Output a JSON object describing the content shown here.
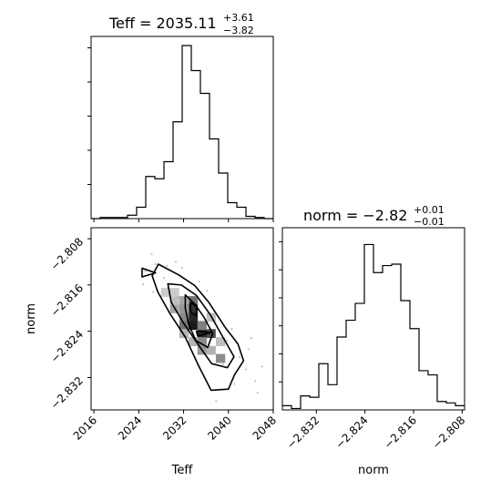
{
  "chart_data": [
    {
      "type": "histogram",
      "panel": "Teff marginal",
      "title": {
        "prefix": "Teff = ",
        "value": "2035.11",
        "upper": "+3.61",
        "lower": "−3.82"
      },
      "xlim": [
        2015.5,
        2048
      ],
      "bin_edges": [
        2015.5,
        2017.125,
        2018.75,
        2020.375,
        2022.0,
        2023.625,
        2025.25,
        2026.875,
        2028.5,
        2030.125,
        2031.75,
        2033.375,
        2035.0,
        2036.625,
        2038.25,
        2039.875,
        2041.5,
        2043.125,
        2044.75,
        2046.375,
        2048.0
      ],
      "counts": [
        0,
        1,
        1,
        1,
        3,
        10,
        37,
        35,
        50,
        85,
        152,
        130,
        110,
        70,
        40,
        14,
        10,
        2,
        1,
        0
      ],
      "ylim": [
        0,
        160
      ],
      "tick_positions": [
        2016,
        2024,
        2032,
        2040,
        2048
      ]
    },
    {
      "type": "histogram",
      "panel": "norm marginal",
      "title": {
        "prefix": "norm = ",
        "value": "−2.82",
        "upper": "+0.01",
        "lower": "−0.01"
      },
      "xlim": [
        -2.8376,
        -2.8076
      ],
      "bin_edges": [
        -2.8376,
        -2.8361,
        -2.8346,
        -2.8331,
        -2.8316,
        -2.8301,
        -2.8286,
        -2.8271,
        -2.8256,
        -2.8241,
        -2.8226,
        -2.8211,
        -2.8196,
        -2.8181,
        -2.8166,
        -2.8151,
        -2.8136,
        -2.8121,
        -2.8106,
        -2.8091,
        -2.8076
      ],
      "counts": [
        3,
        1,
        10,
        9,
        33,
        18,
        52,
        64,
        76,
        118,
        98,
        103,
        104,
        78,
        58,
        28,
        25,
        6,
        5,
        3
      ],
      "ylim": [
        0,
        130
      ],
      "tick_labels": [
        "−2.832",
        "−2.824",
        "−2.816",
        "−2.808"
      ],
      "tick_values": [
        -2.832,
        -2.824,
        -2.816,
        -2.808
      ],
      "xlabel": "norm"
    },
    {
      "type": "scatter",
      "panel": "joint density",
      "xlim": [
        2015.5,
        2048
      ],
      "ylim": [
        -2.8376,
        -2.8061
      ],
      "xlabel": "Teff",
      "ylabel": "norm",
      "x_tick_labels": [
        "2016",
        "2024",
        "2032",
        "2040",
        "2048"
      ],
      "x_tick_values": [
        2016,
        2024,
        2032,
        2040,
        2048
      ],
      "y_tick_labels": [
        "−2.832",
        "−2.824",
        "−2.816",
        "−2.808"
      ],
      "y_tick_values": [
        -2.832,
        -2.824,
        -2.816,
        -2.808
      ],
      "outliers": [
        [
          2026.3,
          -2.8107
        ],
        [
          2025.2,
          -2.8136
        ],
        [
          2027.0,
          -2.8124
        ],
        [
          2029.0,
          -2.8127
        ],
        [
          2030.6,
          -2.812
        ],
        [
          2024.8,
          -2.8159
        ],
        [
          2028.5,
          -2.8148
        ],
        [
          2026.6,
          -2.8172
        ],
        [
          2029.2,
          -2.8165
        ],
        [
          2031.7,
          -2.813
        ],
        [
          2042.0,
          -2.8285
        ],
        [
          2043.1,
          -2.8306
        ],
        [
          2044.8,
          -2.8326
        ],
        [
          2046.0,
          -2.8301
        ],
        [
          2045.2,
          -2.8346
        ],
        [
          2041.1,
          -2.8331
        ],
        [
          2039.0,
          -2.8297
        ],
        [
          2043.6,
          -2.8271
        ],
        [
          2037.8,
          -2.8361
        ],
        [
          2044.1,
          -2.8252
        ],
        [
          2031.0,
          -2.8181
        ],
        [
          2029.9,
          -2.8192
        ],
        [
          2034.8,
          -2.8154
        ],
        [
          2036.2,
          -2.817
        ],
        [
          2040.6,
          -2.8236
        ],
        [
          2039.7,
          -2.8256
        ]
      ],
      "density_cells": [
        {
          "x": 2033.7,
          "y": -2.8187,
          "level": 0.55
        },
        {
          "x": 2033.7,
          "y": -2.8201,
          "level": 0.8
        },
        {
          "x": 2033.7,
          "y": -2.8216,
          "level": 0.85
        },
        {
          "x": 2033.7,
          "y": -2.823,
          "level": 0.9
        },
        {
          "x": 2035.3,
          "y": -2.8244,
          "level": 0.85
        },
        {
          "x": 2036.9,
          "y": -2.8244,
          "level": 0.7
        },
        {
          "x": 2032.1,
          "y": -2.8216,
          "level": 0.45
        },
        {
          "x": 2032.1,
          "y": -2.823,
          "level": 0.55
        },
        {
          "x": 2035.3,
          "y": -2.823,
          "level": 0.5
        },
        {
          "x": 2035.3,
          "y": -2.8258,
          "level": 0.45
        },
        {
          "x": 2030.4,
          "y": -2.8201,
          "level": 0.35
        },
        {
          "x": 2030.4,
          "y": -2.8187,
          "level": 0.25
        },
        {
          "x": 2032.1,
          "y": -2.8187,
          "level": 0.35
        },
        {
          "x": 2035.3,
          "y": -2.8273,
          "level": 0.4
        },
        {
          "x": 2036.9,
          "y": -2.8273,
          "level": 0.3
        },
        {
          "x": 2038.6,
          "y": -2.8287,
          "level": 0.45
        },
        {
          "x": 2038.6,
          "y": -2.8258,
          "level": 0.25
        },
        {
          "x": 2032.1,
          "y": -2.8201,
          "level": 0.4
        },
        {
          "x": 2032.1,
          "y": -2.8244,
          "level": 0.3
        },
        {
          "x": 2033.7,
          "y": -2.8258,
          "level": 0.3
        },
        {
          "x": 2036.9,
          "y": -2.8216,
          "level": 0.25
        },
        {
          "x": 2030.4,
          "y": -2.8173,
          "level": 0.2
        },
        {
          "x": 2028.8,
          "y": -2.8173,
          "level": 0.2
        }
      ],
      "contours": [
        [
          [
            2024.6,
            -2.8131
          ],
          [
            2027.0,
            -2.8139
          ],
          [
            2024.6,
            -2.8146
          ],
          [
            2024.6,
            -2.8131
          ]
        ],
        [
          [
            2027.5,
            -2.8124
          ],
          [
            2031.2,
            -2.8143
          ],
          [
            2034.0,
            -2.8161
          ],
          [
            2036.5,
            -2.819
          ],
          [
            2039.4,
            -2.8233
          ],
          [
            2041.7,
            -2.8262
          ],
          [
            2042.7,
            -2.8291
          ],
          [
            2041.1,
            -2.8315
          ],
          [
            2040.0,
            -2.834
          ],
          [
            2036.9,
            -2.8342
          ],
          [
            2034.7,
            -2.83
          ],
          [
            2032.3,
            -2.825
          ],
          [
            2029.6,
            -2.821
          ],
          [
            2027.4,
            -2.8172
          ],
          [
            2026.4,
            -2.8144
          ],
          [
            2027.5,
            -2.8124
          ]
        ],
        [
          [
            2029.2,
            -2.8158
          ],
          [
            2031.6,
            -2.816
          ],
          [
            2034.3,
            -2.8178
          ],
          [
            2036.8,
            -2.8212
          ],
          [
            2039.0,
            -2.825
          ],
          [
            2041.0,
            -2.8284
          ],
          [
            2039.8,
            -2.8303
          ],
          [
            2037.0,
            -2.8296
          ],
          [
            2034.6,
            -2.8263
          ],
          [
            2032.0,
            -2.8226
          ],
          [
            2029.8,
            -2.819
          ],
          [
            2029.2,
            -2.8158
          ]
        ],
        [
          [
            2032.3,
            -2.8177
          ],
          [
            2034.0,
            -2.8193
          ],
          [
            2035.6,
            -2.8215
          ],
          [
            2037.2,
            -2.8244
          ],
          [
            2036.3,
            -2.8268
          ],
          [
            2034.2,
            -2.8256
          ],
          [
            2032.9,
            -2.8228
          ],
          [
            2032.3,
            -2.82
          ],
          [
            2032.3,
            -2.8177
          ]
        ],
        [
          [
            2033.2,
            -2.819
          ],
          [
            2034.4,
            -2.8198
          ],
          [
            2034.2,
            -2.8213
          ],
          [
            2033.3,
            -2.8207
          ],
          [
            2033.2,
            -2.819
          ]
        ],
        [
          [
            2034.3,
            -2.824
          ],
          [
            2037.0,
            -2.8242
          ],
          [
            2034.5,
            -2.8248
          ],
          [
            2034.3,
            -2.824
          ]
        ]
      ]
    }
  ]
}
